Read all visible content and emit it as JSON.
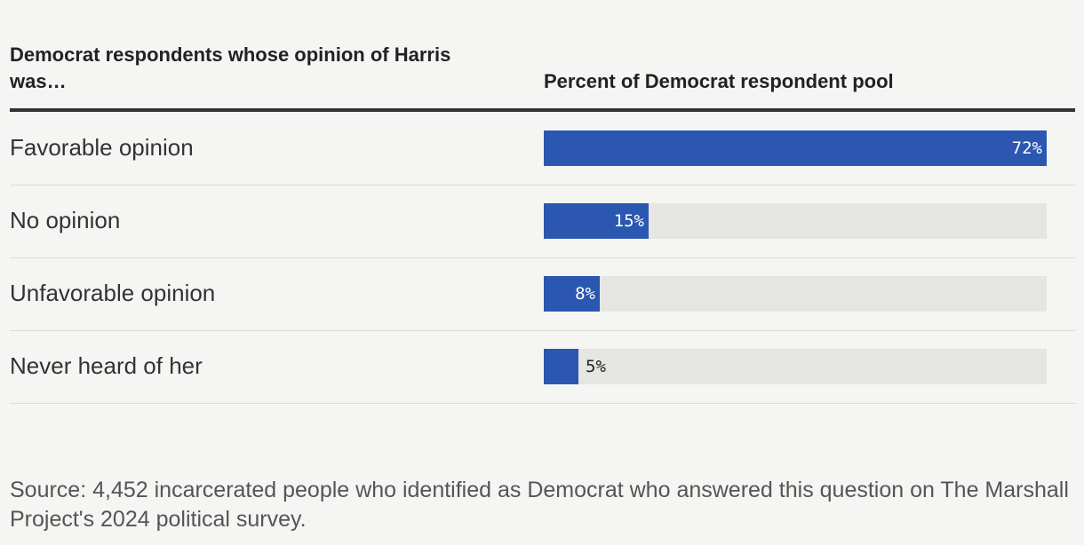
{
  "header": {
    "left_label": "Democrat respondents whose opinion of Harris was…",
    "right_label": "Percent of Democrat respondent pool"
  },
  "chart_data": {
    "type": "bar",
    "orientation": "horizontal",
    "categories": [
      "Favorable opinion",
      "No opinion",
      "Unfavorable opinion",
      "Never heard of her"
    ],
    "values": [
      72,
      15,
      8,
      5
    ],
    "value_labels": [
      "72%",
      "15%",
      "8%",
      "5%"
    ],
    "xlim": [
      0,
      72
    ],
    "bar_color": "#2b57b0",
    "track_color": "#e5e5e3"
  },
  "source": "Source: 4,452 incarcerated people who identified as Democrat who answered this question on The Marshall Project's 2024 political survey."
}
